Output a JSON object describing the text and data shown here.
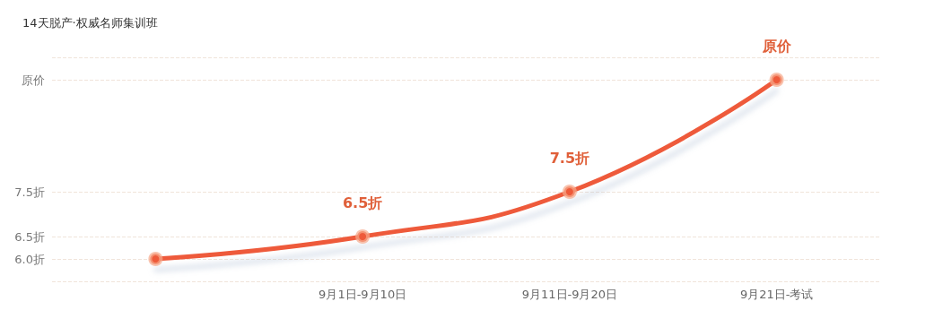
{
  "chart_data": {
    "type": "line",
    "title": "14天脱产·权威名师集训班",
    "categories": [
      null,
      "9月1日-9月10日",
      "9月11日-9月20日",
      "9月21日-考试"
    ],
    "series": [
      {
        "color": "#ee5a3a",
        "values": [
          6.0,
          6.5,
          7.5,
          10
        ],
        "value_labels": [
          null,
          "6.5折",
          "7.5折",
          "原价"
        ]
      }
    ],
    "ylim": [
      5.5,
      10.5
    ],
    "yticks": [
      {
        "value": 5.5,
        "label": null
      },
      {
        "value": 6,
        "label": "6.0折"
      },
      {
        "value": 6.5,
        "label": "6.5折"
      },
      {
        "value": 7.5,
        "label": "7.5折"
      },
      {
        "value": 10,
        "label": "原价"
      },
      {
        "value": 10.5,
        "label": null
      }
    ],
    "grid": "y",
    "marker": "circle",
    "line_style": "solid"
  }
}
